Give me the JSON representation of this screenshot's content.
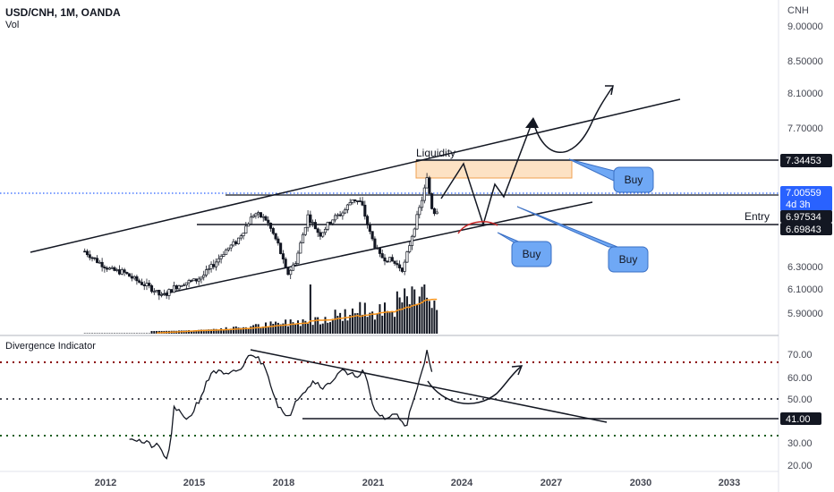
{
  "header": {
    "symbol": "USD/CNH, 1M, OANDA",
    "volume_label": "Vol",
    "currency": "CNH",
    "indicator_title": "Divergence Indicator"
  },
  "colors": {
    "up": "#131722",
    "price_line": "#2962ff",
    "ma": "#f7931a",
    "red_dotted": "#8b0000",
    "green_dotted": "#1b5e20",
    "zone_fill": "#fde2c4",
    "zone_stroke": "#f0a050",
    "bubble_fill": "#6fa8f5",
    "blue_tag": "#2962ff"
  },
  "annotations": {
    "liquidity": "Liquidity",
    "entry": "Entry",
    "buy": "Buy"
  },
  "price_tags": {
    "resistance": "7.34453",
    "current": "7.00559",
    "countdown": "4d 3h",
    "entry_high": "6.97534",
    "entry_low": "6.69843"
  },
  "chart_data": [
    {
      "type": "candlestick",
      "title": "USD/CNH, 1M, OANDA",
      "y_ticks": [
        "9.00000",
        "8.50000",
        "8.10000",
        "7.70000",
        "6.30000",
        "6.10000",
        "5.90000"
      ],
      "x_ticks": [
        "2012",
        "2015",
        "2018",
        "2021",
        "2024",
        "2027",
        "2030",
        "2033"
      ],
      "ylim": [
        5.8,
        9.1
      ],
      "price_path": [
        {
          "x": 2011.3,
          "y": 6.55
        },
        {
          "x": 2011.7,
          "y": 6.45
        },
        {
          "x": 2012.2,
          "y": 6.35
        },
        {
          "x": 2012.6,
          "y": 6.33
        },
        {
          "x": 2013.0,
          "y": 6.25
        },
        {
          "x": 2013.5,
          "y": 6.17
        },
        {
          "x": 2013.9,
          "y": 6.07
        },
        {
          "x": 2014.3,
          "y": 6.17
        },
        {
          "x": 2014.6,
          "y": 6.22
        },
        {
          "x": 2015.0,
          "y": 6.24
        },
        {
          "x": 2015.3,
          "y": 6.3
        },
        {
          "x": 2015.6,
          "y": 6.4
        },
        {
          "x": 2016.0,
          "y": 6.55
        },
        {
          "x": 2016.4,
          "y": 6.65
        },
        {
          "x": 2016.8,
          "y": 6.85
        },
        {
          "x": 2017.0,
          "y": 6.95
        },
        {
          "x": 2017.4,
          "y": 6.88
        },
        {
          "x": 2017.8,
          "y": 6.62
        },
        {
          "x": 2018.1,
          "y": 6.3
        },
        {
          "x": 2018.4,
          "y": 6.45
        },
        {
          "x": 2018.8,
          "y": 6.92
        },
        {
          "x": 2019.2,
          "y": 6.72
        },
        {
          "x": 2019.6,
          "y": 6.88
        },
        {
          "x": 2020.0,
          "y": 6.96
        },
        {
          "x": 2020.3,
          "y": 7.1
        },
        {
          "x": 2020.6,
          "y": 7.05
        },
        {
          "x": 2020.9,
          "y": 6.72
        },
        {
          "x": 2021.2,
          "y": 6.5
        },
        {
          "x": 2021.6,
          "y": 6.45
        },
        {
          "x": 2022.0,
          "y": 6.36
        },
        {
          "x": 2022.3,
          "y": 6.72
        },
        {
          "x": 2022.6,
          "y": 7.05
        },
        {
          "x": 2022.8,
          "y": 7.3
        },
        {
          "x": 2023.0,
          "y": 6.95
        },
        {
          "x": 2023.2,
          "y": 7.0
        }
      ],
      "volume_ma_note": "Vol"
    },
    {
      "type": "line",
      "title": "Divergence Indicator",
      "y_ticks": [
        "70.00",
        "60.00",
        "50.00",
        "41.00",
        "30.00",
        "20.00"
      ],
      "ylim": [
        18,
        76
      ],
      "levels": [
        {
          "y": 67,
          "color": "red"
        },
        {
          "y": 50,
          "color": "black"
        },
        {
          "y": 34,
          "color": "green"
        }
      ],
      "series": [
        {
          "values": [
            {
              "x": 2012.8,
              "y": 33
            },
            {
              "x": 2013.3,
              "y": 30
            },
            {
              "x": 2013.8,
              "y": 28
            },
            {
              "x": 2014.1,
              "y": 22
            },
            {
              "x": 2014.3,
              "y": 45
            },
            {
              "x": 2014.8,
              "y": 41
            },
            {
              "x": 2015.2,
              "y": 51
            },
            {
              "x": 2015.6,
              "y": 63
            },
            {
              "x": 2016.1,
              "y": 60
            },
            {
              "x": 2016.6,
              "y": 64
            },
            {
              "x": 2016.9,
              "y": 71
            },
            {
              "x": 2017.4,
              "y": 64
            },
            {
              "x": 2017.7,
              "y": 50
            },
            {
              "x": 2018.1,
              "y": 40
            },
            {
              "x": 2018.4,
              "y": 50
            },
            {
              "x": 2019.0,
              "y": 58
            },
            {
              "x": 2019.4,
              "y": 55
            },
            {
              "x": 2019.9,
              "y": 63
            },
            {
              "x": 2020.2,
              "y": 60
            },
            {
              "x": 2020.7,
              "y": 62
            },
            {
              "x": 2021.0,
              "y": 45
            },
            {
              "x": 2021.4,
              "y": 41
            },
            {
              "x": 2021.8,
              "y": 43
            },
            {
              "x": 2022.1,
              "y": 38
            },
            {
              "x": 2022.5,
              "y": 55
            },
            {
              "x": 2022.8,
              "y": 71
            },
            {
              "x": 2023.0,
              "y": 62
            }
          ]
        }
      ]
    }
  ]
}
